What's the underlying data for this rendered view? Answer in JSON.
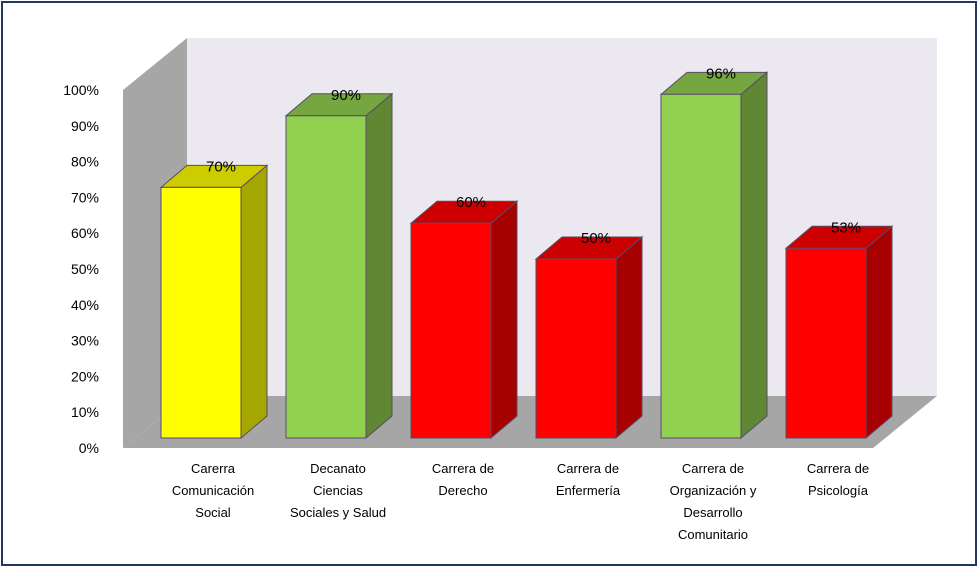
{
  "chart_data": {
    "type": "bar",
    "title": "",
    "xlabel": "",
    "ylabel": "",
    "ylim": [
      0,
      100
    ],
    "y_ticks": [
      "0%",
      "10%",
      "20%",
      "30%",
      "40%",
      "50%",
      "60%",
      "70%",
      "80%",
      "90%",
      "100%"
    ],
    "three_d": true,
    "grid": false,
    "legend": "none",
    "categories": [
      "Carerra Comunicación Social",
      "Decanato Ciencias Sociales y Salud",
      "Carrera de Derecho",
      "Carrera de Enfermería",
      "Carrera de Organización y Desarrollo Comunitario",
      "Carrera de Psicología"
    ],
    "category_lines": [
      [
        "Carerra",
        "Comunicación",
        "Social"
      ],
      [
        "Decanato",
        "Ciencias",
        "Sociales y Salud"
      ],
      [
        "Carrera de",
        "Derecho"
      ],
      [
        "Carrera de",
        "Enfermería"
      ],
      [
        "Carrera de",
        "Organización y",
        "Desarrollo",
        "Comunitario"
      ],
      [
        "Carrera de",
        "Psicología"
      ]
    ],
    "values": [
      70,
      90,
      60,
      50,
      96,
      53
    ],
    "data_labels": [
      "70%",
      "90%",
      "60%",
      "50%",
      "96%",
      "53%"
    ],
    "bar_colors": [
      "#ffff00",
      "#92d050",
      "#ff0000",
      "#ff0000",
      "#92d050",
      "#ff0000"
    ],
    "wall_colors": {
      "back": "#ebe8f0",
      "side": "#a6a6a6",
      "floor": "#a6a6a6"
    }
  }
}
